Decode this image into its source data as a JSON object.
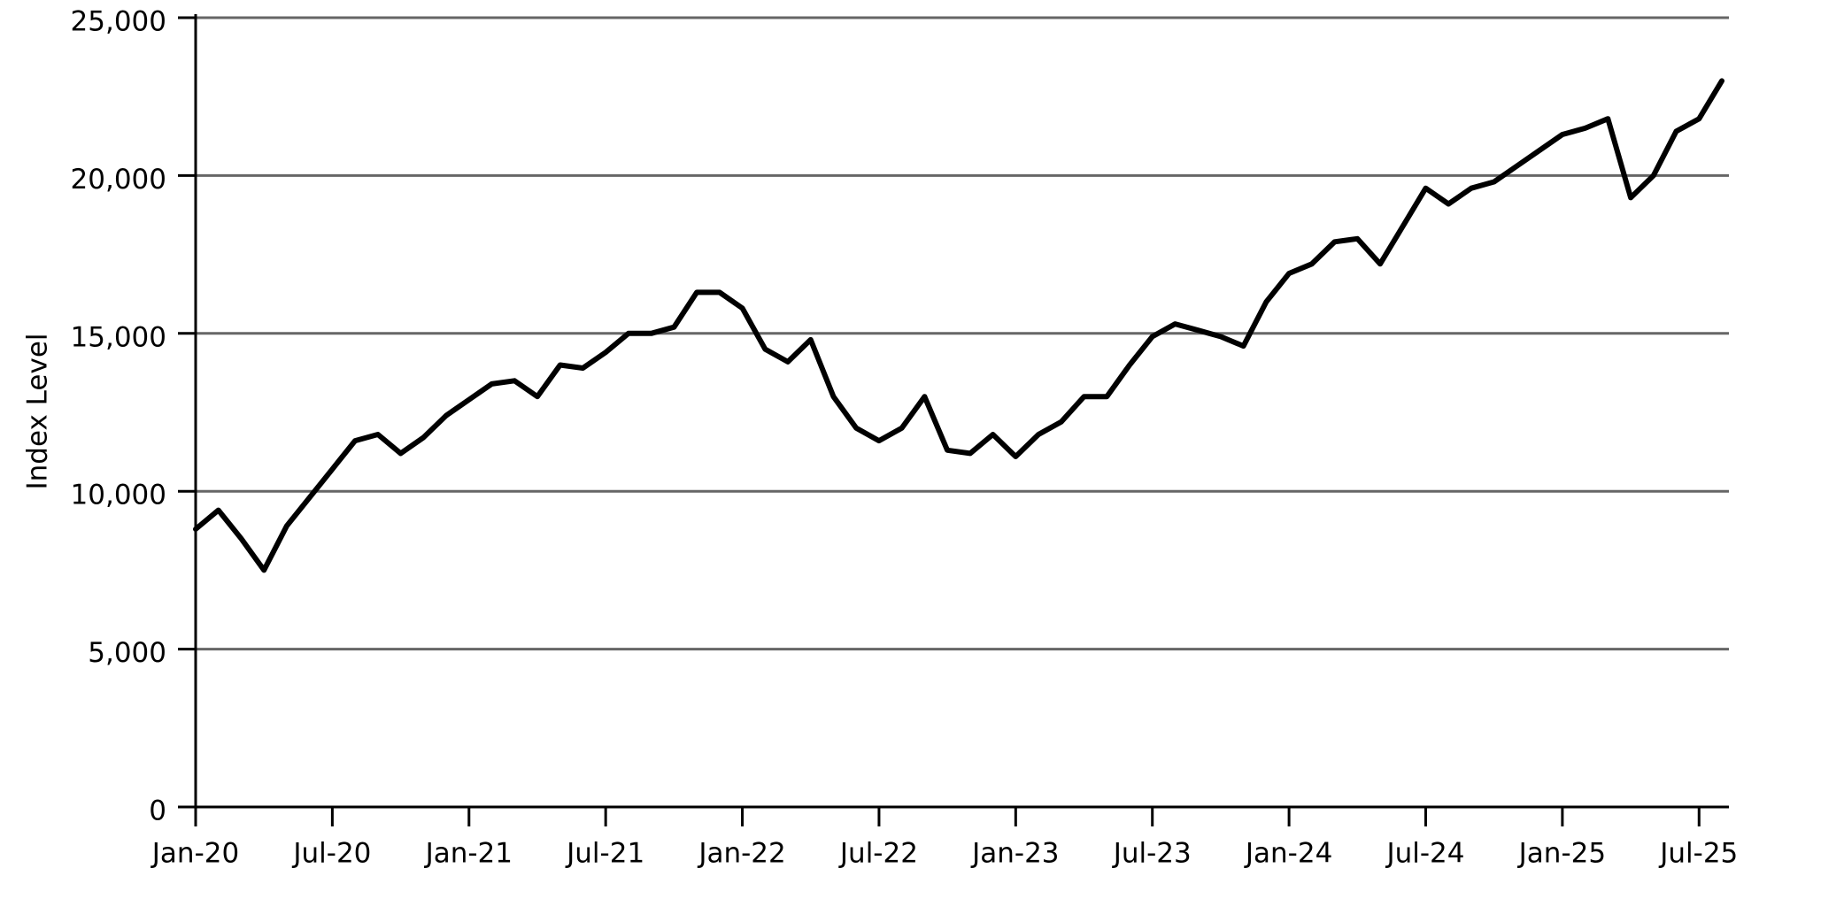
{
  "chart_data": {
    "type": "line",
    "y_label": "Index Level",
    "x": [
      "2020-01",
      "2020-02",
      "2020-03",
      "2020-04",
      "2020-05",
      "2020-06",
      "2020-07",
      "2020-08",
      "2020-09",
      "2020-10",
      "2020-11",
      "2020-12",
      "2021-01",
      "2021-02",
      "2021-03",
      "2021-04",
      "2021-05",
      "2021-06",
      "2021-07",
      "2021-08",
      "2021-09",
      "2021-10",
      "2021-11",
      "2021-12",
      "2022-01",
      "2022-02",
      "2022-03",
      "2022-04",
      "2022-05",
      "2022-06",
      "2022-07",
      "2022-08",
      "2022-09",
      "2022-10",
      "2022-11",
      "2022-12",
      "2023-01",
      "2023-02",
      "2023-03",
      "2023-04",
      "2023-05",
      "2023-06",
      "2023-07",
      "2023-08",
      "2023-09",
      "2023-10",
      "2023-11",
      "2023-12",
      "2024-01",
      "2024-02",
      "2024-03",
      "2024-04",
      "2024-05",
      "2024-06",
      "2024-07",
      "2024-08",
      "2024-09",
      "2024-10",
      "2024-11",
      "2024-12",
      "2025-01",
      "2025-02",
      "2025-03",
      "2025-04",
      "2025-05",
      "2025-06",
      "2025-07",
      "2025-08"
    ],
    "series": [
      {
        "name": "Index Level",
        "color": "#000000",
        "values": [
          8800,
          9400,
          8500,
          7500,
          8900,
          9800,
          10700,
          11600,
          11800,
          11200,
          11700,
          12400,
          12900,
          13400,
          13500,
          13000,
          14000,
          13900,
          14400,
          15000,
          15000,
          15200,
          16300,
          16300,
          15800,
          14500,
          14100,
          14800,
          13000,
          12000,
          11600,
          12000,
          13000,
          11300,
          11200,
          11800,
          11100,
          11800,
          12200,
          13000,
          13000,
          14000,
          14900,
          15300,
          15100,
          14900,
          14600,
          16000,
          16900,
          17200,
          17900,
          18000,
          17200,
          18400,
          19600,
          19100,
          19600,
          19800,
          20300,
          20800,
          21300,
          21500,
          21800,
          19300,
          20000,
          21400,
          21800,
          23000
        ]
      }
    ],
    "xlim": [
      "2020-01",
      "2025-08"
    ],
    "xticks": [
      {
        "value": "2020-01",
        "label": "Jan-20"
      },
      {
        "value": "2020-07",
        "label": "Jul-20"
      },
      {
        "value": "2021-01",
        "label": "Jan-21"
      },
      {
        "value": "2021-07",
        "label": "Jul-21"
      },
      {
        "value": "2022-01",
        "label": "Jan-22"
      },
      {
        "value": "2022-07",
        "label": "Jul-22"
      },
      {
        "value": "2023-01",
        "label": "Jan-23"
      },
      {
        "value": "2023-07",
        "label": "Jul-23"
      },
      {
        "value": "2024-01",
        "label": "Jan-24"
      },
      {
        "value": "2024-07",
        "label": "Jul-24"
      },
      {
        "value": "2025-01",
        "label": "Jan-25"
      },
      {
        "value": "2025-07",
        "label": "Jul-25"
      }
    ],
    "ylim": [
      0,
      25000
    ],
    "yticks": [
      0,
      {
        "value": 5000,
        "label": "5,000"
      },
      {
        "value": 10000,
        "label": "10,000"
      },
      {
        "value": 15000,
        "label": "15,000"
      },
      {
        "value": 20000,
        "label": "20,000"
      },
      {
        "value": 25000,
        "label": "25,000"
      }
    ],
    "grid": true
  }
}
